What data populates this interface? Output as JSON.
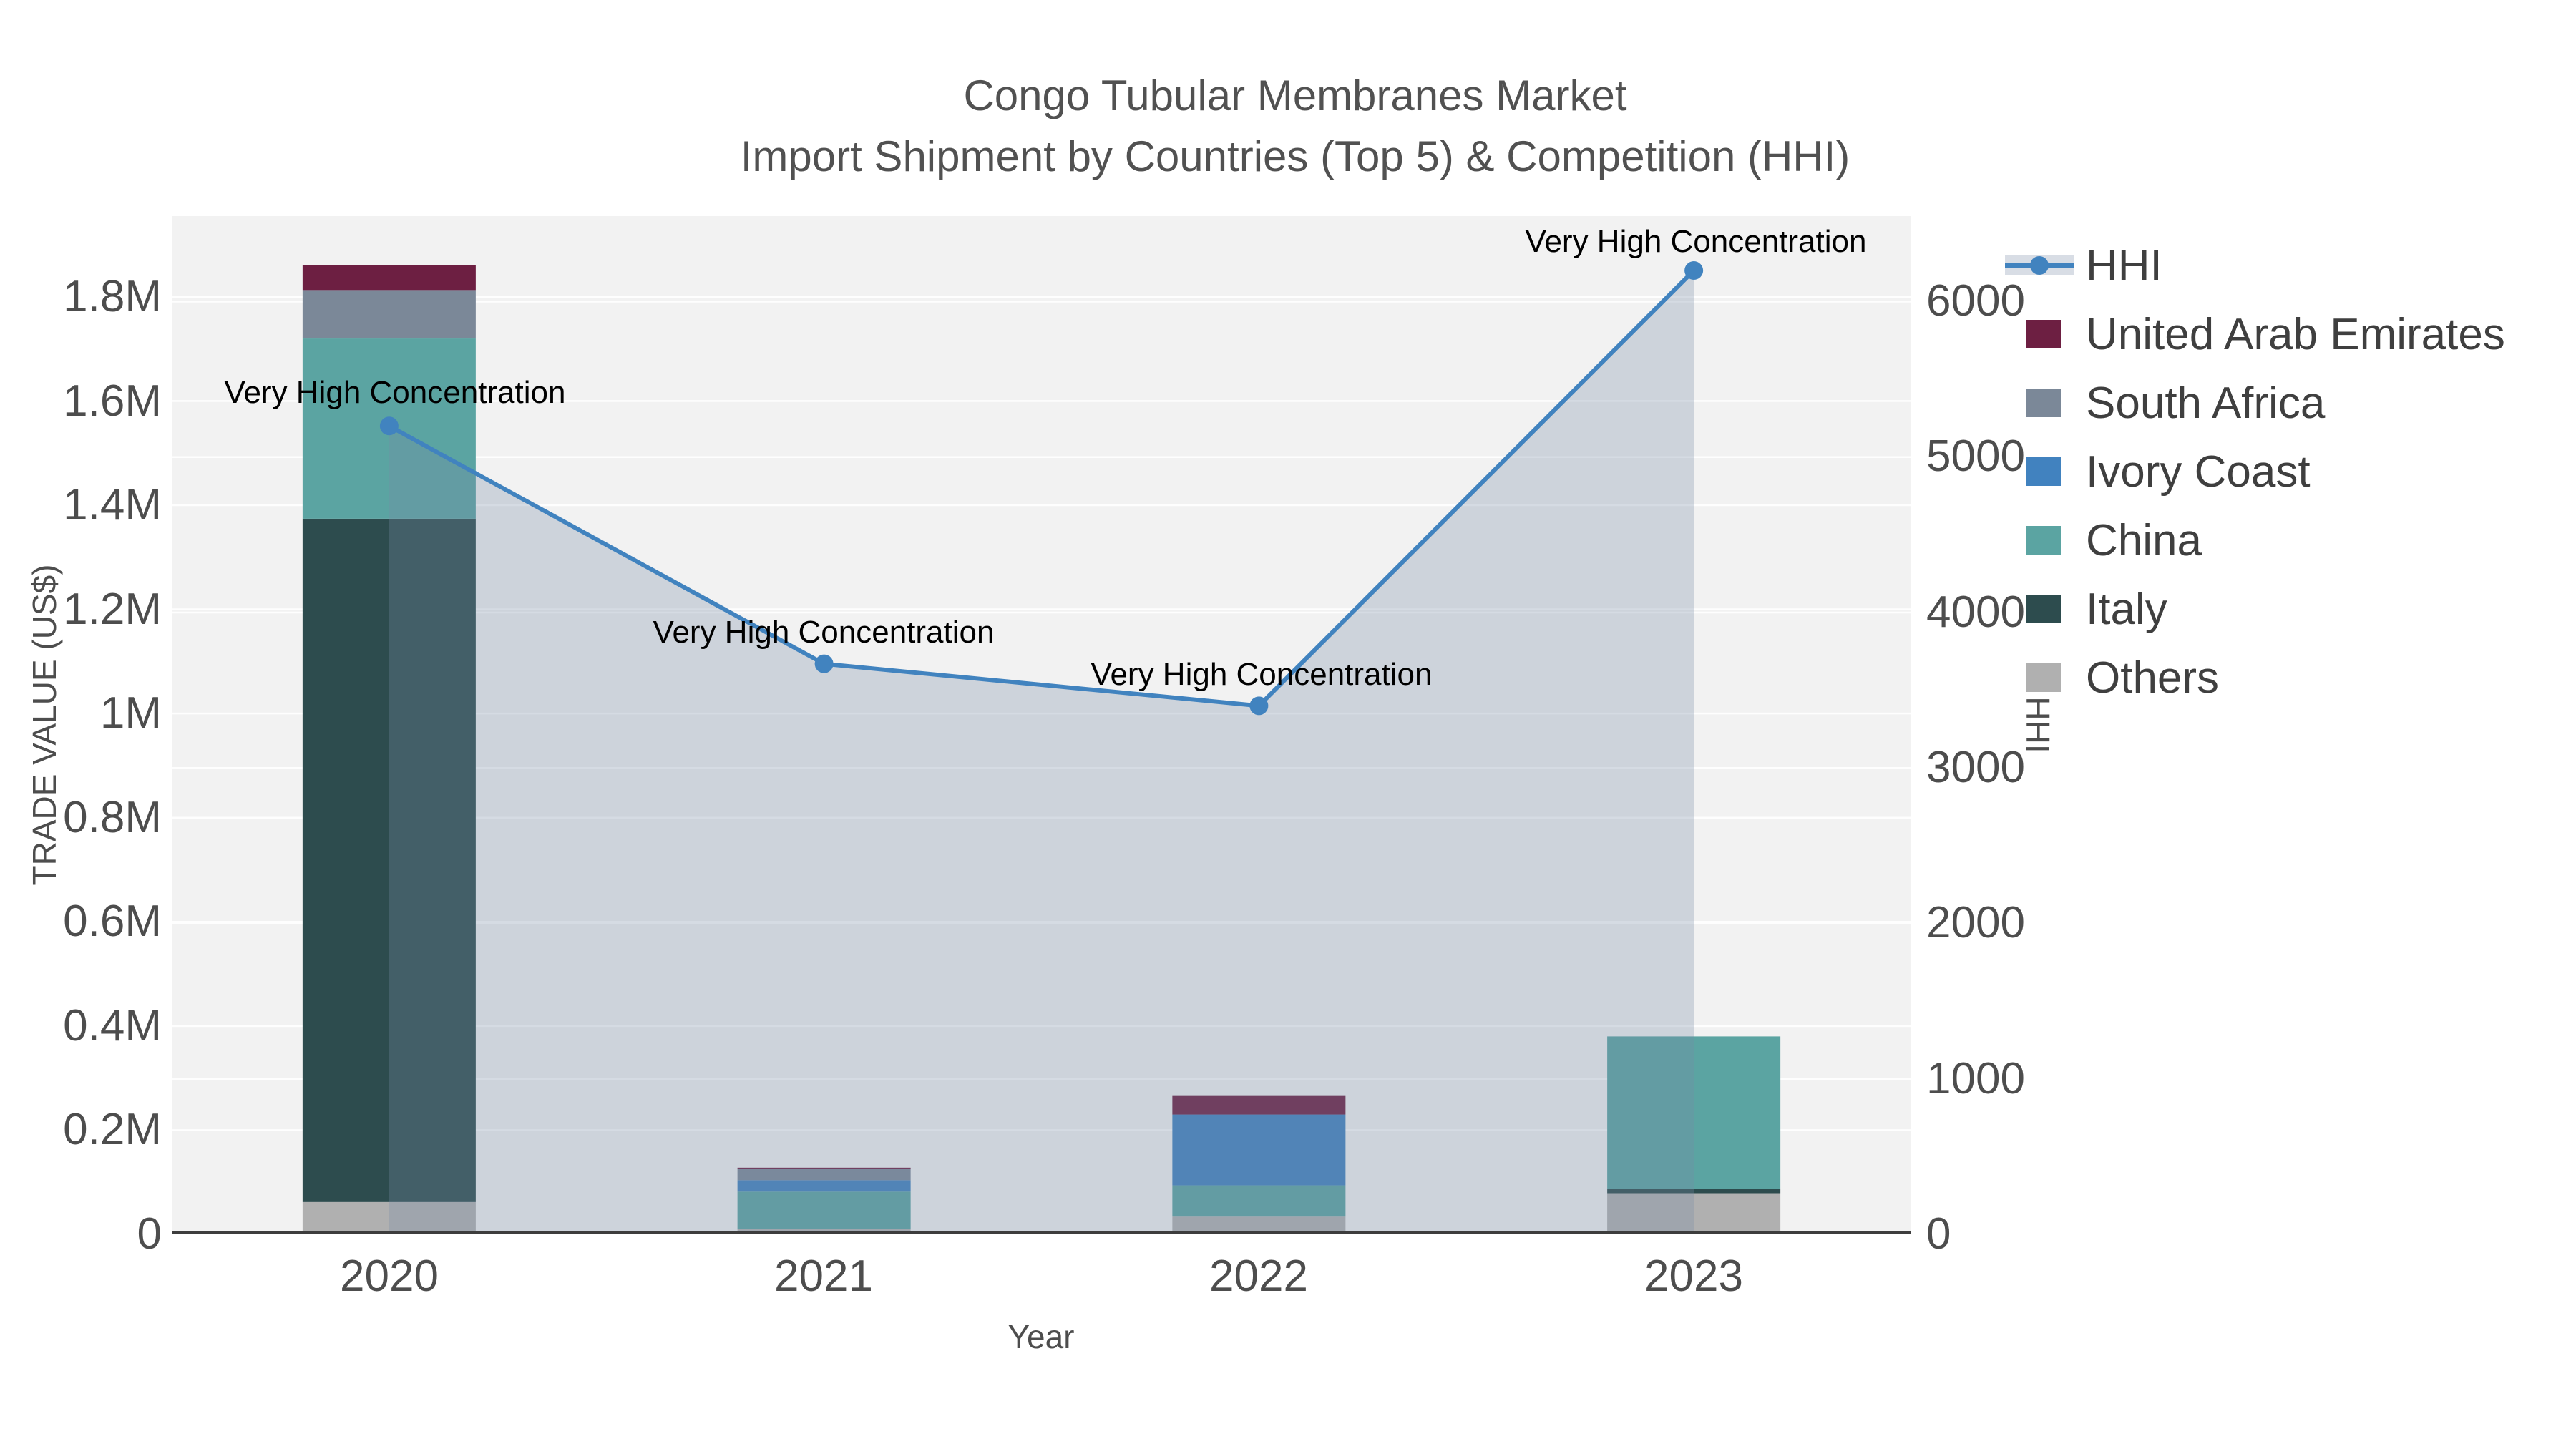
{
  "chart_data": {
    "type": "bar-line-combo",
    "bar_type": "stacked-bar",
    "line_type": "line-with-area-fill",
    "title_line1": "Congo Tubular Membranes Market",
    "title_line2": "Import Shipment by Countries (Top 5) & Competition (HHI)",
    "xlabel": "Year",
    "ylabel_left": "TRADE VALUE (US$)",
    "ylabel_right": "HHI",
    "categories": [
      "2020",
      "2021",
      "2022",
      "2023"
    ],
    "bar_series": [
      {
        "name": "Others",
        "color": "#b0b0b0",
        "values": [
          62000,
          10000,
          34000,
          79000
        ]
      },
      {
        "name": "Italy",
        "color": "#2d4c4e",
        "values": [
          1312000,
          0,
          0,
          8000
        ]
      },
      {
        "name": "China",
        "color": "#5ba4a2",
        "values": [
          346000,
          72000,
          60000,
          293000
        ]
      },
      {
        "name": "Ivory Coast",
        "color": "#4182bf",
        "values": [
          0,
          22000,
          136000,
          0
        ]
      },
      {
        "name": "South Africa",
        "color": "#7b8898",
        "values": [
          93000,
          21000,
          0,
          0
        ]
      },
      {
        "name": "United Arab Emirates",
        "color": "#6d1f42",
        "values": [
          48000,
          3000,
          37000,
          0
        ]
      }
    ],
    "bar_totals_usd": [
      1861000,
      128000,
      267000,
      380000
    ],
    "line_series": {
      "name": "HHI",
      "color": "#4183bf",
      "area_fill": "rgba(120,140,165,0.30)",
      "values": [
        5200,
        3670,
        3400,
        6200
      ]
    },
    "annotations": [
      {
        "text": "Very High Concentration",
        "category": "2020",
        "hhi": 5200
      },
      {
        "text": "Very High Concentration",
        "category": "2021",
        "hhi": 3670
      },
      {
        "text": "Very High Concentration",
        "category": "2022",
        "hhi": 3400
      },
      {
        "text": "Very High Concentration",
        "category": "2023",
        "hhi": 6200
      }
    ],
    "ylim_left_usd": [
      0,
      1955000
    ],
    "ylim_right_hhi": [
      0,
      6550
    ],
    "yticks_left": [
      "0",
      "0.2M",
      "0.4M",
      "0.6M",
      "0.8M",
      "1M",
      "1.2M",
      "1.4M",
      "1.6M",
      "1.8M"
    ],
    "yticks_right": [
      "0",
      "1000",
      "2000",
      "3000",
      "4000",
      "5000",
      "6000"
    ],
    "grid_left_values": [
      200000,
      400000,
      600000,
      800000,
      1000000,
      1200000,
      1400000,
      1600000,
      1800000
    ],
    "grid_right_values": [
      1000,
      2000,
      3000,
      4000,
      5000,
      6000
    ],
    "grid": true,
    "legend_position": "right",
    "plot_bgcolor": "#f2f2f2",
    "gridline_color": "#ffffff"
  },
  "legend": {
    "items": [
      {
        "label": "HHI",
        "swatch": "line-marker",
        "color": "#4183bf"
      },
      {
        "label": "United Arab Emirates",
        "swatch": "square",
        "color": "#6d1f42"
      },
      {
        "label": "South Africa",
        "swatch": "square",
        "color": "#7b8898"
      },
      {
        "label": "Ivory Coast",
        "swatch": "square",
        "color": "#4182bf"
      },
      {
        "label": "China",
        "swatch": "square",
        "color": "#5ba4a2"
      },
      {
        "label": "Italy",
        "swatch": "square",
        "color": "#2d4c4e"
      },
      {
        "label": "Others",
        "swatch": "square",
        "color": "#b0b0b0"
      }
    ]
  }
}
